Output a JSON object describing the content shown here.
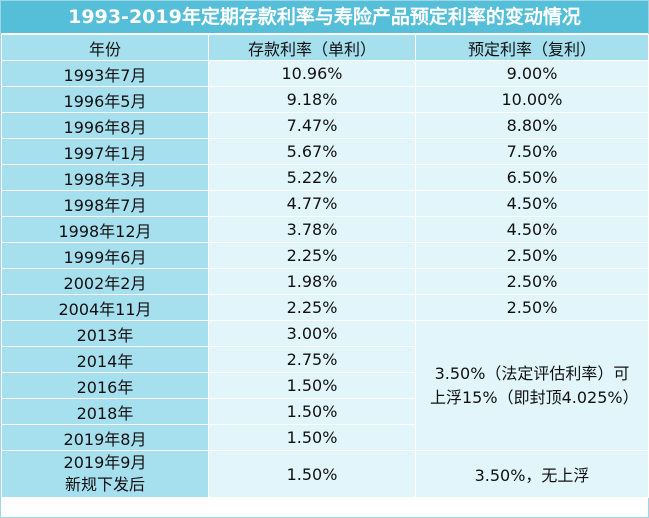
{
  "title": "1993-2019年定期存款利率与寿险产品预定利率的变动情况",
  "headers": {
    "year": "年份",
    "deposit": "存款利率（单利）",
    "preset": "预定利率（复利）"
  },
  "rows": [
    {
      "year": "1993年7月",
      "deposit": "10.96%",
      "preset": "9.00%"
    },
    {
      "year": "1996年5月",
      "deposit": "9.18%",
      "preset": "10.00%"
    },
    {
      "year": "1996年8月",
      "deposit": "7.47%",
      "preset": "8.80%"
    },
    {
      "year": "1997年1月",
      "deposit": "5.67%",
      "preset": "7.50%"
    },
    {
      "year": "1998年3月",
      "deposit": "5.22%",
      "preset": "6.50%"
    },
    {
      "year": "1998年7月",
      "deposit": "4.77%",
      "preset": "4.50%"
    },
    {
      "year": "1998年12月",
      "deposit": "3.78%",
      "preset": "4.50%"
    },
    {
      "year": "1999年6月",
      "deposit": "2.25%",
      "preset": "2.50%"
    },
    {
      "year": "2002年2月",
      "deposit": "1.98%",
      "preset": "2.50%"
    },
    {
      "year": "2004年11月",
      "deposit": "2.25%",
      "preset": "2.50%"
    },
    {
      "year": "2013年",
      "deposit": "3.00%"
    },
    {
      "year": "2014年",
      "deposit": "2.75%"
    },
    {
      "year": "2016年",
      "deposit": "1.50%"
    },
    {
      "year": "2018年",
      "deposit": "1.50%"
    },
    {
      "year": "2019年8月",
      "deposit": "1.50%"
    }
  ],
  "merged_preset": "3.50%（法定评估利率）可上浮15%（即封顶4.025%）",
  "last_row": {
    "year_line1": "2019年9月",
    "year_line2": "新规下发后",
    "deposit": "1.50%",
    "preset": "3.50%，无上浮"
  }
}
